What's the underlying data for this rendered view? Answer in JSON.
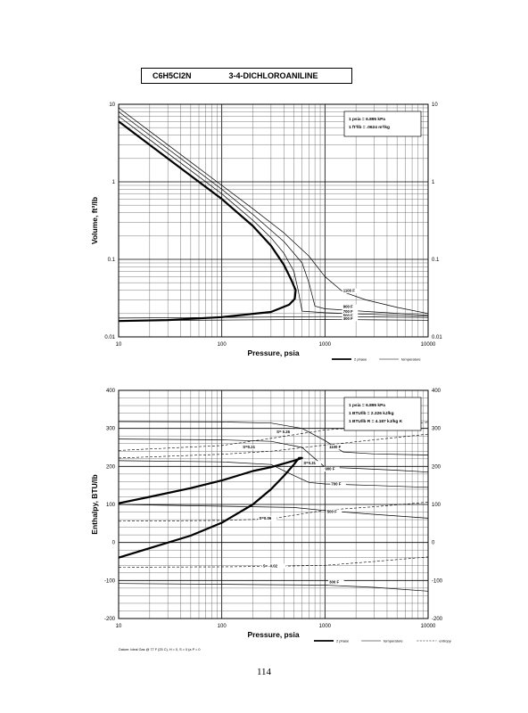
{
  "page": {
    "formula": "C6H5Cl2N",
    "compound": "3-4-DICHLOROANILINE",
    "page_number": "114"
  },
  "chart_data": [
    {
      "type": "line",
      "xscale": "log",
      "yscale": "log",
      "xlabel": "Pressure,  psia",
      "ylabel": "Volume, ft^3/lb",
      "xlim": [
        10,
        10000
      ],
      "ylim": [
        0.01,
        10
      ],
      "xticks": [
        10,
        100,
        1000,
        10000
      ],
      "xtick_labels": [
        "10",
        "100",
        "1000",
        "10000"
      ],
      "yticks": [
        0.01,
        0.1,
        1,
        10
      ],
      "ytick_labels": [
        "0.01",
        "0.1",
        "1",
        "10"
      ],
      "grid": true,
      "note_lines": [
        "1 psia  =  6.895 kPa",
        "1 ft^3/lb  =  .0624 m^3/kg"
      ],
      "legend": {
        "placement": "bottom-right",
        "entries": [
          "2 phase",
          "temperature"
        ]
      },
      "series": [
        {
          "name": "2 phase",
          "style": "thick",
          "points": [
            [
              10,
              6
            ],
            [
              20,
              3
            ],
            [
              50,
              1.2
            ],
            [
              100,
              0.6
            ],
            [
              200,
              0.27
            ],
            [
              300,
              0.15
            ],
            [
              400,
              0.085
            ],
            [
              470,
              0.055
            ],
            [
              520,
              0.04
            ],
            [
              510,
              0.031
            ],
            [
              450,
              0.026
            ],
            [
              300,
              0.021
            ],
            [
              100,
              0.018
            ],
            [
              30,
              0.0165
            ],
            [
              10,
              0.016
            ]
          ]
        },
        {
          "name": "1100 F",
          "style": "thin",
          "points": [
            [
              10,
              9
            ],
            [
              20,
              4.5
            ],
            [
              50,
              1.8
            ],
            [
              100,
              0.9
            ],
            [
              200,
              0.45
            ],
            [
              400,
              0.22
            ],
            [
              700,
              0.11
            ],
            [
              1000,
              0.06
            ],
            [
              1500,
              0.038
            ],
            [
              2500,
              0.03
            ],
            [
              5000,
              0.024
            ],
            [
              10000,
              0.02
            ]
          ]
        },
        {
          "name": "900 F",
          "style": "thin",
          "points": [
            [
              10,
              8
            ],
            [
              20,
              4
            ],
            [
              50,
              1.6
            ],
            [
              100,
              0.8
            ],
            [
              200,
              0.38
            ],
            [
              400,
              0.17
            ],
            [
              600,
              0.09
            ],
            [
              700,
              0.05
            ],
            [
              800,
              0.025
            ],
            [
              1000,
              0.023
            ],
            [
              3000,
              0.021
            ],
            [
              10000,
              0.019
            ]
          ]
        },
        {
          "name": "700 F",
          "style": "thin",
          "points": [
            [
              10,
              7
            ],
            [
              20,
              3.5
            ],
            [
              50,
              1.4
            ],
            [
              100,
              0.7
            ],
            [
              200,
              0.32
            ],
            [
              300,
              0.19
            ],
            [
              400,
              0.12
            ],
            [
              500,
              0.07
            ],
            [
              550,
              0.04
            ],
            [
              600,
              0.0215
            ],
            [
              1000,
              0.0205
            ],
            [
              3000,
              0.0195
            ],
            [
              10000,
              0.0185
            ]
          ]
        },
        {
          "name": "500 F",
          "style": "thin",
          "points": [
            [
              10,
              0.0175
            ],
            [
              100,
              0.0178
            ],
            [
              1000,
              0.0183
            ],
            [
              3000,
              0.0181
            ],
            [
              10000,
              0.0178
            ]
          ]
        },
        {
          "name": "300 F",
          "style": "thin",
          "points": [
            [
              10,
              0.0162
            ],
            [
              100,
              0.0165
            ],
            [
              1000,
              0.0168
            ],
            [
              3000,
              0.0166
            ],
            [
              10000,
              0.0164
            ]
          ]
        }
      ],
      "curve_labels": [
        {
          "text": "1100 F",
          "at": [
            1500,
            0.038
          ]
        },
        {
          "text": "900 F",
          "at": [
            1500,
            0.0235
          ]
        },
        {
          "text": "700 F",
          "at": [
            1500,
            0.0205
          ]
        },
        {
          "text": "500 F",
          "at": [
            1500,
            0.0182
          ]
        },
        {
          "text": "300 F",
          "at": [
            1500,
            0.0166
          ]
        }
      ]
    },
    {
      "type": "line",
      "xscale": "log",
      "yscale": "linear",
      "xlabel": "Pressure,  psia",
      "ylabel": "Enthalpy, BTU/lb",
      "xlim": [
        10,
        10000
      ],
      "ylim": [
        -200,
        400
      ],
      "xticks": [
        10,
        100,
        1000,
        10000
      ],
      "xtick_labels": [
        "10",
        "100",
        "1000",
        "10000"
      ],
      "yticks": [
        -200,
        -100,
        0,
        100,
        200,
        300,
        400
      ],
      "ytick_labels": [
        "-200",
        "-100",
        "0",
        "100",
        "200",
        "300",
        "400"
      ],
      "grid": true,
      "note_lines": [
        "1 psia  =  6.895 kPa",
        "1 BTU/lb  =  2.326 kJ/kg",
        "1 BTU/lb R  =  4.187 kJ/kg K"
      ],
      "footnote": "Datum: Ideal Gas @ 77 F (25 C),  H = 0,  S = 0 (a P = 0",
      "legend": {
        "placement": "bottom-right",
        "entries": [
          "2 phase",
          "temperature",
          "entropy"
        ]
      },
      "series": [
        {
          "name": "2 phase",
          "style": "thick",
          "points": [
            [
              10,
              -40
            ],
            [
              20,
              -15
            ],
            [
              50,
              18
            ],
            [
              100,
              52
            ],
            [
              200,
              100
            ],
            [
              300,
              140
            ],
            [
              400,
              175
            ],
            [
              500,
              205
            ],
            [
              560,
              222
            ],
            [
              600,
              222
            ],
            [
              500,
              215
            ],
            [
              300,
              198
            ],
            [
              200,
              188
            ],
            [
              100,
              163
            ],
            [
              50,
              143
            ],
            [
              20,
              120
            ],
            [
              10,
              103
            ]
          ]
        },
        {
          "name": "1100 F",
          "style": "thin",
          "points": [
            [
              10,
              318
            ],
            [
              100,
              317
            ],
            [
              300,
              314
            ],
            [
              600,
              300
            ],
            [
              1000,
              268
            ],
            [
              1500,
              238
            ],
            [
              3000,
              233
            ],
            [
              10000,
              230
            ]
          ]
        },
        {
          "name": "900 F",
          "style": "thin",
          "points": [
            [
              10,
              272
            ],
            [
              100,
              270
            ],
            [
              300,
              266
            ],
            [
              600,
              250
            ],
            [
              1000,
              198
            ],
            [
              2000,
              195
            ],
            [
              5000,
              190
            ],
            [
              10000,
              185
            ]
          ]
        },
        {
          "name": "700 F",
          "style": "thin",
          "points": [
            [
              10,
              215
            ],
            [
              100,
              212
            ],
            [
              300,
              205
            ],
            [
              500,
              176
            ],
            [
              700,
              158
            ],
            [
              1000,
              154
            ],
            [
              3000,
              150
            ],
            [
              10000,
              145
            ]
          ]
        },
        {
          "name": "500 F",
          "style": "thin",
          "points": [
            [
              10,
              100
            ],
            [
              500,
              92
            ],
            [
              1000,
              84
            ],
            [
              3000,
              74
            ],
            [
              10000,
              64
            ]
          ]
        },
        {
          "name": "300 F",
          "style": "thin",
          "points": [
            [
              10,
              -108
            ],
            [
              1000,
              -112
            ],
            [
              3000,
              -118
            ],
            [
              10000,
              -128
            ]
          ]
        },
        {
          "name": "S=0.26",
          "style": "dash",
          "points": [
            [
              10,
              242
            ],
            [
              100,
              255
            ],
            [
              300,
              274
            ],
            [
              1000,
              296
            ],
            [
              3000,
              305
            ],
            [
              10000,
              316
            ]
          ]
        },
        {
          "name": "S=0.21",
          "style": "dash",
          "points": [
            [
              10,
              222
            ],
            [
              100,
              232
            ],
            [
              300,
              240
            ],
            [
              1000,
              256
            ],
            [
              3000,
              270
            ],
            [
              10000,
              285
            ]
          ]
        },
        {
          "name": "S=0.06",
          "style": "dash",
          "points": [
            [
              10,
              56
            ],
            [
              100,
              58
            ],
            [
              300,
              62
            ],
            [
              1000,
              85
            ],
            [
              3000,
              94
            ],
            [
              10000,
              106
            ]
          ]
        },
        {
          "name": "S=-0.02",
          "style": "dash",
          "points": [
            [
              10,
              -65
            ],
            [
              100,
              -64
            ],
            [
              300,
              -63
            ],
            [
              1000,
              -60
            ],
            [
              3000,
              -50
            ],
            [
              10000,
              -38
            ]
          ]
        }
      ],
      "curve_labels": [
        {
          "text": "1100 F",
          "at": [
            1100,
            248
          ]
        },
        {
          "text": "900 F",
          "at": [
            1000,
            190
          ]
        },
        {
          "text": "700 F",
          "at": [
            1150,
            150
          ]
        },
        {
          "text": "500 F",
          "at": [
            1050,
            78
          ]
        },
        {
          "text": "300 F",
          "at": [
            1100,
            -108
          ]
        },
        {
          "text": "S= 0.26",
          "at": [
            340,
            288
          ]
        },
        {
          "text": "S=0.21",
          "at": [
            160,
            248
          ]
        },
        {
          "text": "S=0.31",
          "at": [
            620,
            205
          ]
        },
        {
          "text": "S=0.06",
          "at": [
            230,
            60
          ]
        },
        {
          "text": "S= -0.02",
          "at": [
            250,
            -65
          ]
        }
      ]
    }
  ]
}
